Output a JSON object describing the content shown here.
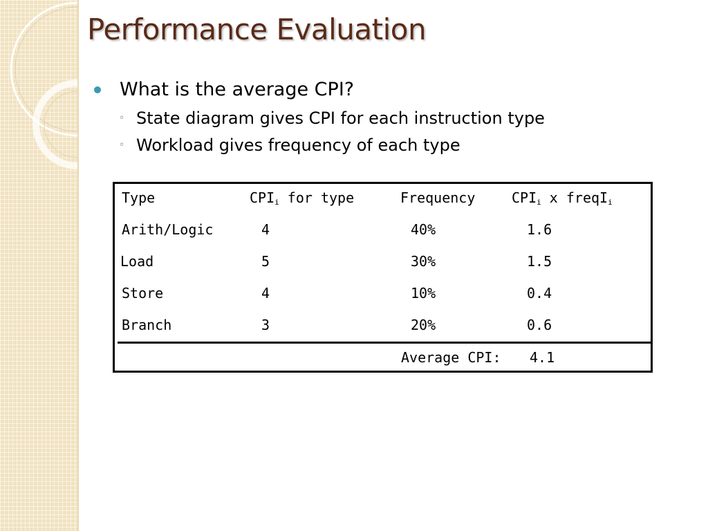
{
  "slide": {
    "title": "Performance Evaluation",
    "bullets": [
      {
        "text": "What is the average CPI?",
        "sub": [
          "State diagram gives CPI for each instruction type",
          "Workload gives frequency of each type"
        ]
      }
    ]
  },
  "table": {
    "headers": {
      "type": "Type",
      "cpi_prefix": "CPI",
      "cpi_sub": "i",
      "cpi_suffix": " for type",
      "frequency": "Frequency",
      "prod_prefix": "CPI",
      "prod_sub1": "i",
      "prod_mid": " x freqI",
      "prod_sub2": "i"
    },
    "rows": [
      {
        "type": "Arith/Logic",
        "cpi": "4",
        "frequency": "40%",
        "product": "1.6"
      },
      {
        "type": "Load",
        "cpi": "5",
        "frequency": "30%",
        "product": "1.5"
      },
      {
        "type": "Store",
        "cpi": "4",
        "frequency": "10%",
        "product": "0.4"
      },
      {
        "type": "Branch",
        "cpi": "3",
        "frequency": "20%",
        "product": "0.6"
      }
    ],
    "footer": {
      "label": "Average CPI:",
      "value": "4.1"
    }
  },
  "colors": {
    "title": "#5a2a17",
    "bullet": "#3a9bb0",
    "side_strip": "#f1e2c0"
  }
}
